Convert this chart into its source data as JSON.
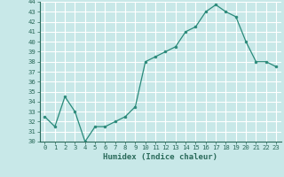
{
  "x": [
    0,
    1,
    2,
    3,
    4,
    5,
    6,
    7,
    8,
    9,
    10,
    11,
    12,
    13,
    14,
    15,
    16,
    17,
    18,
    19,
    20,
    21,
    22,
    23
  ],
  "y": [
    32.5,
    31.5,
    34.5,
    33.0,
    30.0,
    31.5,
    31.5,
    32.0,
    32.5,
    33.5,
    38.0,
    38.5,
    39.0,
    39.5,
    41.0,
    41.5,
    43.0,
    43.7,
    43.0,
    42.5,
    40.0,
    38.0,
    38.0,
    37.5
  ],
  "xlabel": "Humidex (Indice chaleur)",
  "ylim": [
    30,
    44
  ],
  "xlim": [
    -0.5,
    23.5
  ],
  "yticks": [
    30,
    31,
    32,
    33,
    34,
    35,
    36,
    37,
    38,
    39,
    40,
    41,
    42,
    43,
    44
  ],
  "xticks": [
    0,
    1,
    2,
    3,
    4,
    5,
    6,
    7,
    8,
    9,
    10,
    11,
    12,
    13,
    14,
    15,
    16,
    17,
    18,
    19,
    20,
    21,
    22,
    23
  ],
  "line_color": "#2a8a7a",
  "marker_color": "#2a8a7a",
  "bg_color": "#c8e8e8",
  "grid_color": "#ffffff",
  "font_color": "#2a6a5a",
  "xlabel_fontsize": 6.5,
  "tick_fontsize": 5.2
}
